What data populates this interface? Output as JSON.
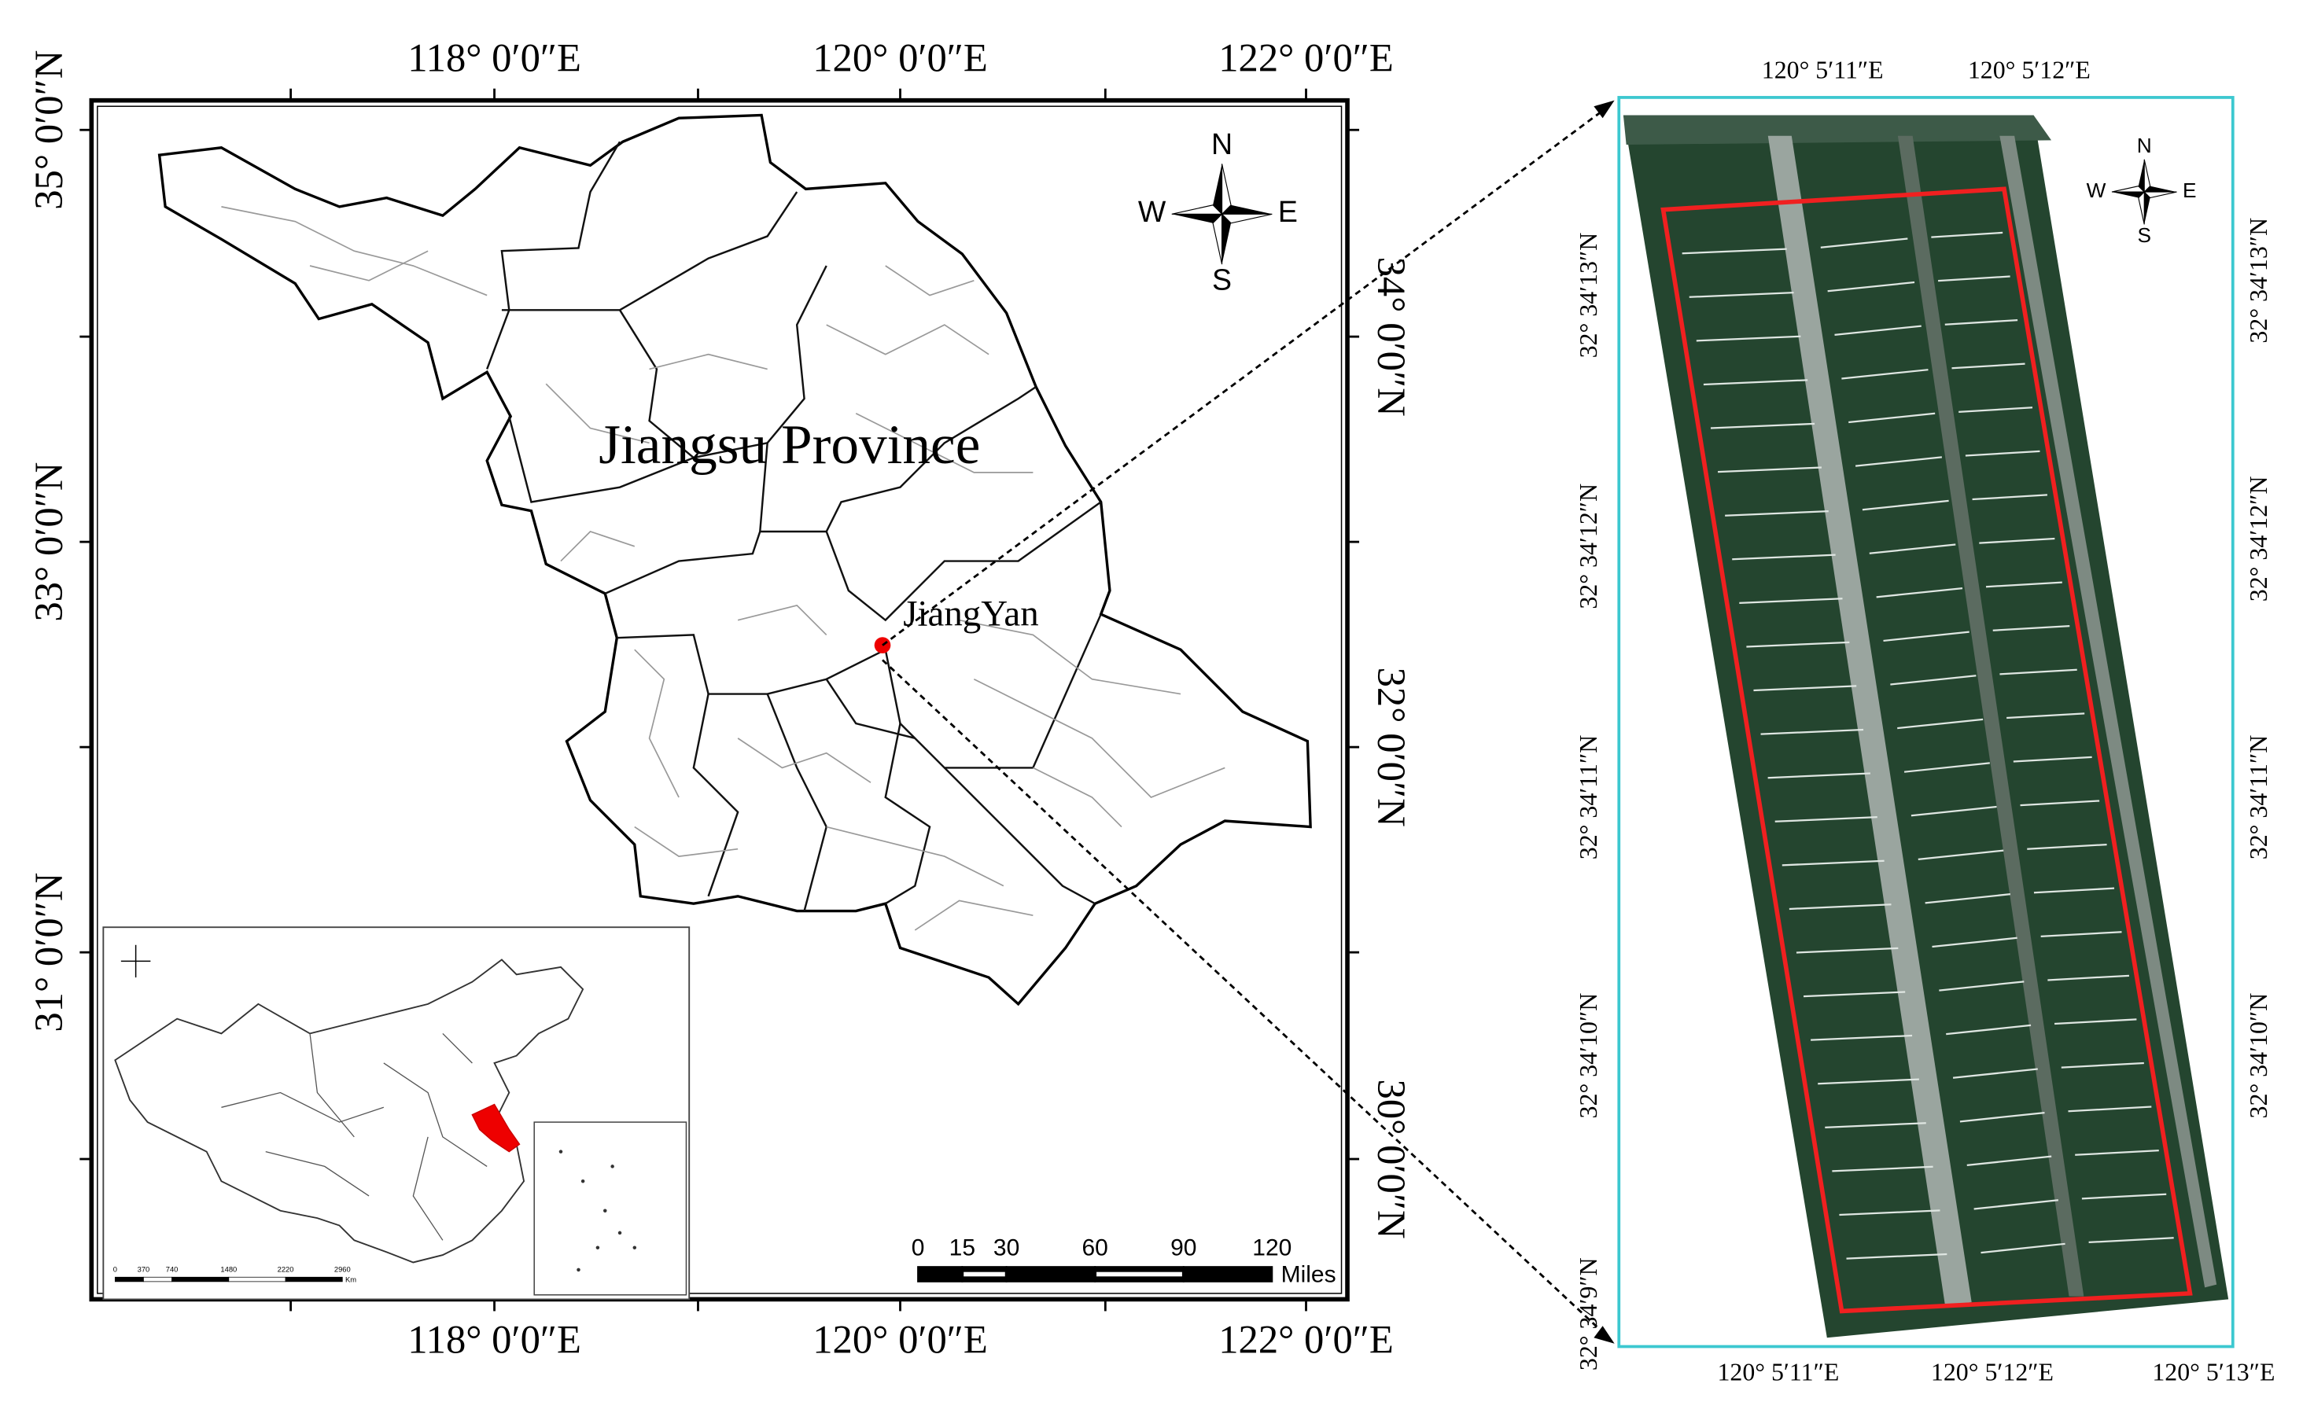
{
  "left_map": {
    "top_labels": [
      "118° 0′0″E",
      "120° 0′0″E",
      "122° 0′0″E"
    ],
    "bottom_labels": [
      "118° 0′0″E",
      "120° 0′0″E",
      "122° 0′0″E"
    ],
    "left_labels": [
      "35° 0′0″N",
      "33° 0′0″N",
      "31° 0′0″N"
    ],
    "right_labels": [
      "34° 0′0″N",
      "32° 0′0″N",
      "30° 0′0″N"
    ],
    "region_label": "Jiangsu Province",
    "site_label": "JiangYan",
    "compass": {
      "n": "N",
      "s": "S",
      "e": "E",
      "w": "W"
    },
    "scale_bar": {
      "ticks": [
        0,
        15,
        30,
        60,
        90,
        120
      ],
      "unit": "Miles"
    },
    "inset": {
      "scale_ticks": [
        0,
        370,
        740,
        1480,
        2220,
        2960
      ],
      "unit": "Km"
    }
  },
  "right_map": {
    "top_labels": [
      "120° 5′11″E",
      "120° 5′12″E"
    ],
    "bottom_labels": [
      "120° 5′11″E",
      "120° 5′12″E",
      "120° 5′13″E"
    ],
    "left_labels": [
      "32° 34′13″N",
      "32° 34′12″N",
      "32° 34′11″N",
      "32° 34′10″N",
      "32° 34′9″N"
    ],
    "right_labels": [
      "32° 34′13″N",
      "32° 34′12″N",
      "32° 34′11″N",
      "32° 34′10″N"
    ],
    "compass": {
      "n": "N",
      "s": "S",
      "e": "E",
      "w": "W"
    }
  }
}
